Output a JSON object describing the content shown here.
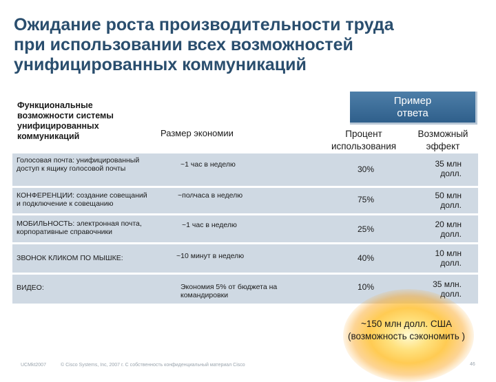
{
  "title": {
    "line1": "Ожидание роста производительности труда",
    "line2": "при использовании всех возможностей",
    "line3": "унифицированных коммуникаций"
  },
  "headers": {
    "functionality": [
      "Функциональные",
      "возможности системы",
      "унифицированных",
      "коммуникаций"
    ],
    "savings_size": "Размер экономии",
    "example": [
      "Пример",
      "ответа"
    ],
    "usage_percent": [
      "Процент",
      "использования"
    ],
    "possible_effect": [
      "Возможный",
      "эффект"
    ]
  },
  "rows": [
    {
      "func": [
        "Голосовая почта: унифицированный",
        "доступ к ящику голосовой почты"
      ],
      "size": [
        "~1 час в неделю"
      ],
      "pct": "30%",
      "effect": [
        "35 млн",
        "долл."
      ]
    },
    {
      "func": [
        "КОНФЕРЕНЦИИ: создание совещаний",
        "и подключение к совещанию"
      ],
      "size": [
        "~полчаса в неделю"
      ],
      "pct": "75%",
      "effect": [
        "50 млн",
        "долл."
      ]
    },
    {
      "func": [
        "МОБИЛЬНОСТЬ: электронная почта,",
        "корпоративные справочники"
      ],
      "size": [
        "~1 час в неделю"
      ],
      "pct": "25%",
      "effect": [
        "20 млн",
        "долл."
      ]
    },
    {
      "func": [
        "ЗВОНОК КЛИКОМ ПО МЫШКЕ:"
      ],
      "size": [
        "~10 минут в неделю"
      ],
      "pct": "40%",
      "effect": [
        "10 млн",
        "долл."
      ]
    },
    {
      "func": [
        "ВИДЕО:"
      ],
      "size": [
        "Экономия 5% от бюджета на",
        "командировки"
      ],
      "pct": "10%",
      "effect": [
        "35 млн.",
        "долл."
      ]
    }
  ],
  "total": [
    "~150 млн долл. США",
    "(возможность сэкономить )"
  ],
  "footer": {
    "left": "UCMkt2007",
    "middle": "© Cisco Systems, Inc, 2007 г. С собственность конфиденциальный материал Cisco",
    "right": "46"
  },
  "colors": {
    "title": "#2a4e6e",
    "row_bg": "#cfd9e3",
    "example_box": "#3d6e99",
    "glow": "#f5a623"
  }
}
